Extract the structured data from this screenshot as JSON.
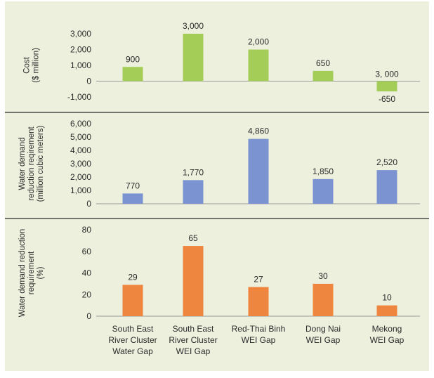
{
  "colors": {
    "background": "#ecf0dd",
    "separator": "#4a4a4a",
    "axis": "#9a9a9a",
    "text": "#2b2b2b"
  },
  "categories": [
    [
      "South East",
      "River Cluster",
      "Water Gap"
    ],
    [
      "South East",
      "River Cluster",
      "WEI Gap"
    ],
    [
      "Red-Thai Binh",
      "WEI Gap"
    ],
    [
      "Dong Nai",
      "WEI Gap"
    ],
    [
      "Mekong",
      "WEI Gap"
    ]
  ],
  "chart_data": [
    {
      "type": "bar",
      "ylabel": [
        "Cost",
        "($ million)"
      ],
      "ylim": [
        -1000,
        3000
      ],
      "yticks": [
        -1000,
        0,
        1000,
        2000,
        3000
      ],
      "ytick_labels": [
        "-1,000",
        "0",
        "1,000",
        "2,000",
        "3,000"
      ],
      "values": [
        900,
        3000,
        2000,
        650,
        -650
      ],
      "data_labels": [
        "900",
        "3,000",
        "2,000",
        "650",
        "-650"
      ],
      "extra_labels": [
        null,
        null,
        null,
        null,
        "3, 000"
      ],
      "color": "#a4cd57"
    },
    {
      "type": "bar",
      "ylabel": [
        "Water demand",
        "reduction reqirement",
        "(million cubic meters)"
      ],
      "ylim": [
        0,
        6000
      ],
      "yticks": [
        0,
        1000,
        2000,
        3000,
        4000,
        5000,
        6000
      ],
      "ytick_labels": [
        "0",
        "1,000",
        "2,000",
        "3,000",
        "4,000",
        "5,000",
        "6,000"
      ],
      "values": [
        770,
        1770,
        4860,
        1850,
        2520
      ],
      "data_labels": [
        "770",
        "1,770",
        "4,860",
        "1,850",
        "2,520"
      ],
      "color": "#7b93d1"
    },
    {
      "type": "bar",
      "ylabel": [
        "Water demand reduction",
        "requirement",
        "(%)"
      ],
      "ylim": [
        0,
        80
      ],
      "yticks": [
        0,
        20,
        40,
        60,
        80
      ],
      "ytick_labels": [
        "0",
        "20",
        "40",
        "60",
        "80"
      ],
      "values": [
        29,
        65,
        27,
        30,
        10
      ],
      "data_labels": [
        "29",
        "65",
        "27",
        "30",
        "10"
      ],
      "color": "#ef8640"
    }
  ]
}
